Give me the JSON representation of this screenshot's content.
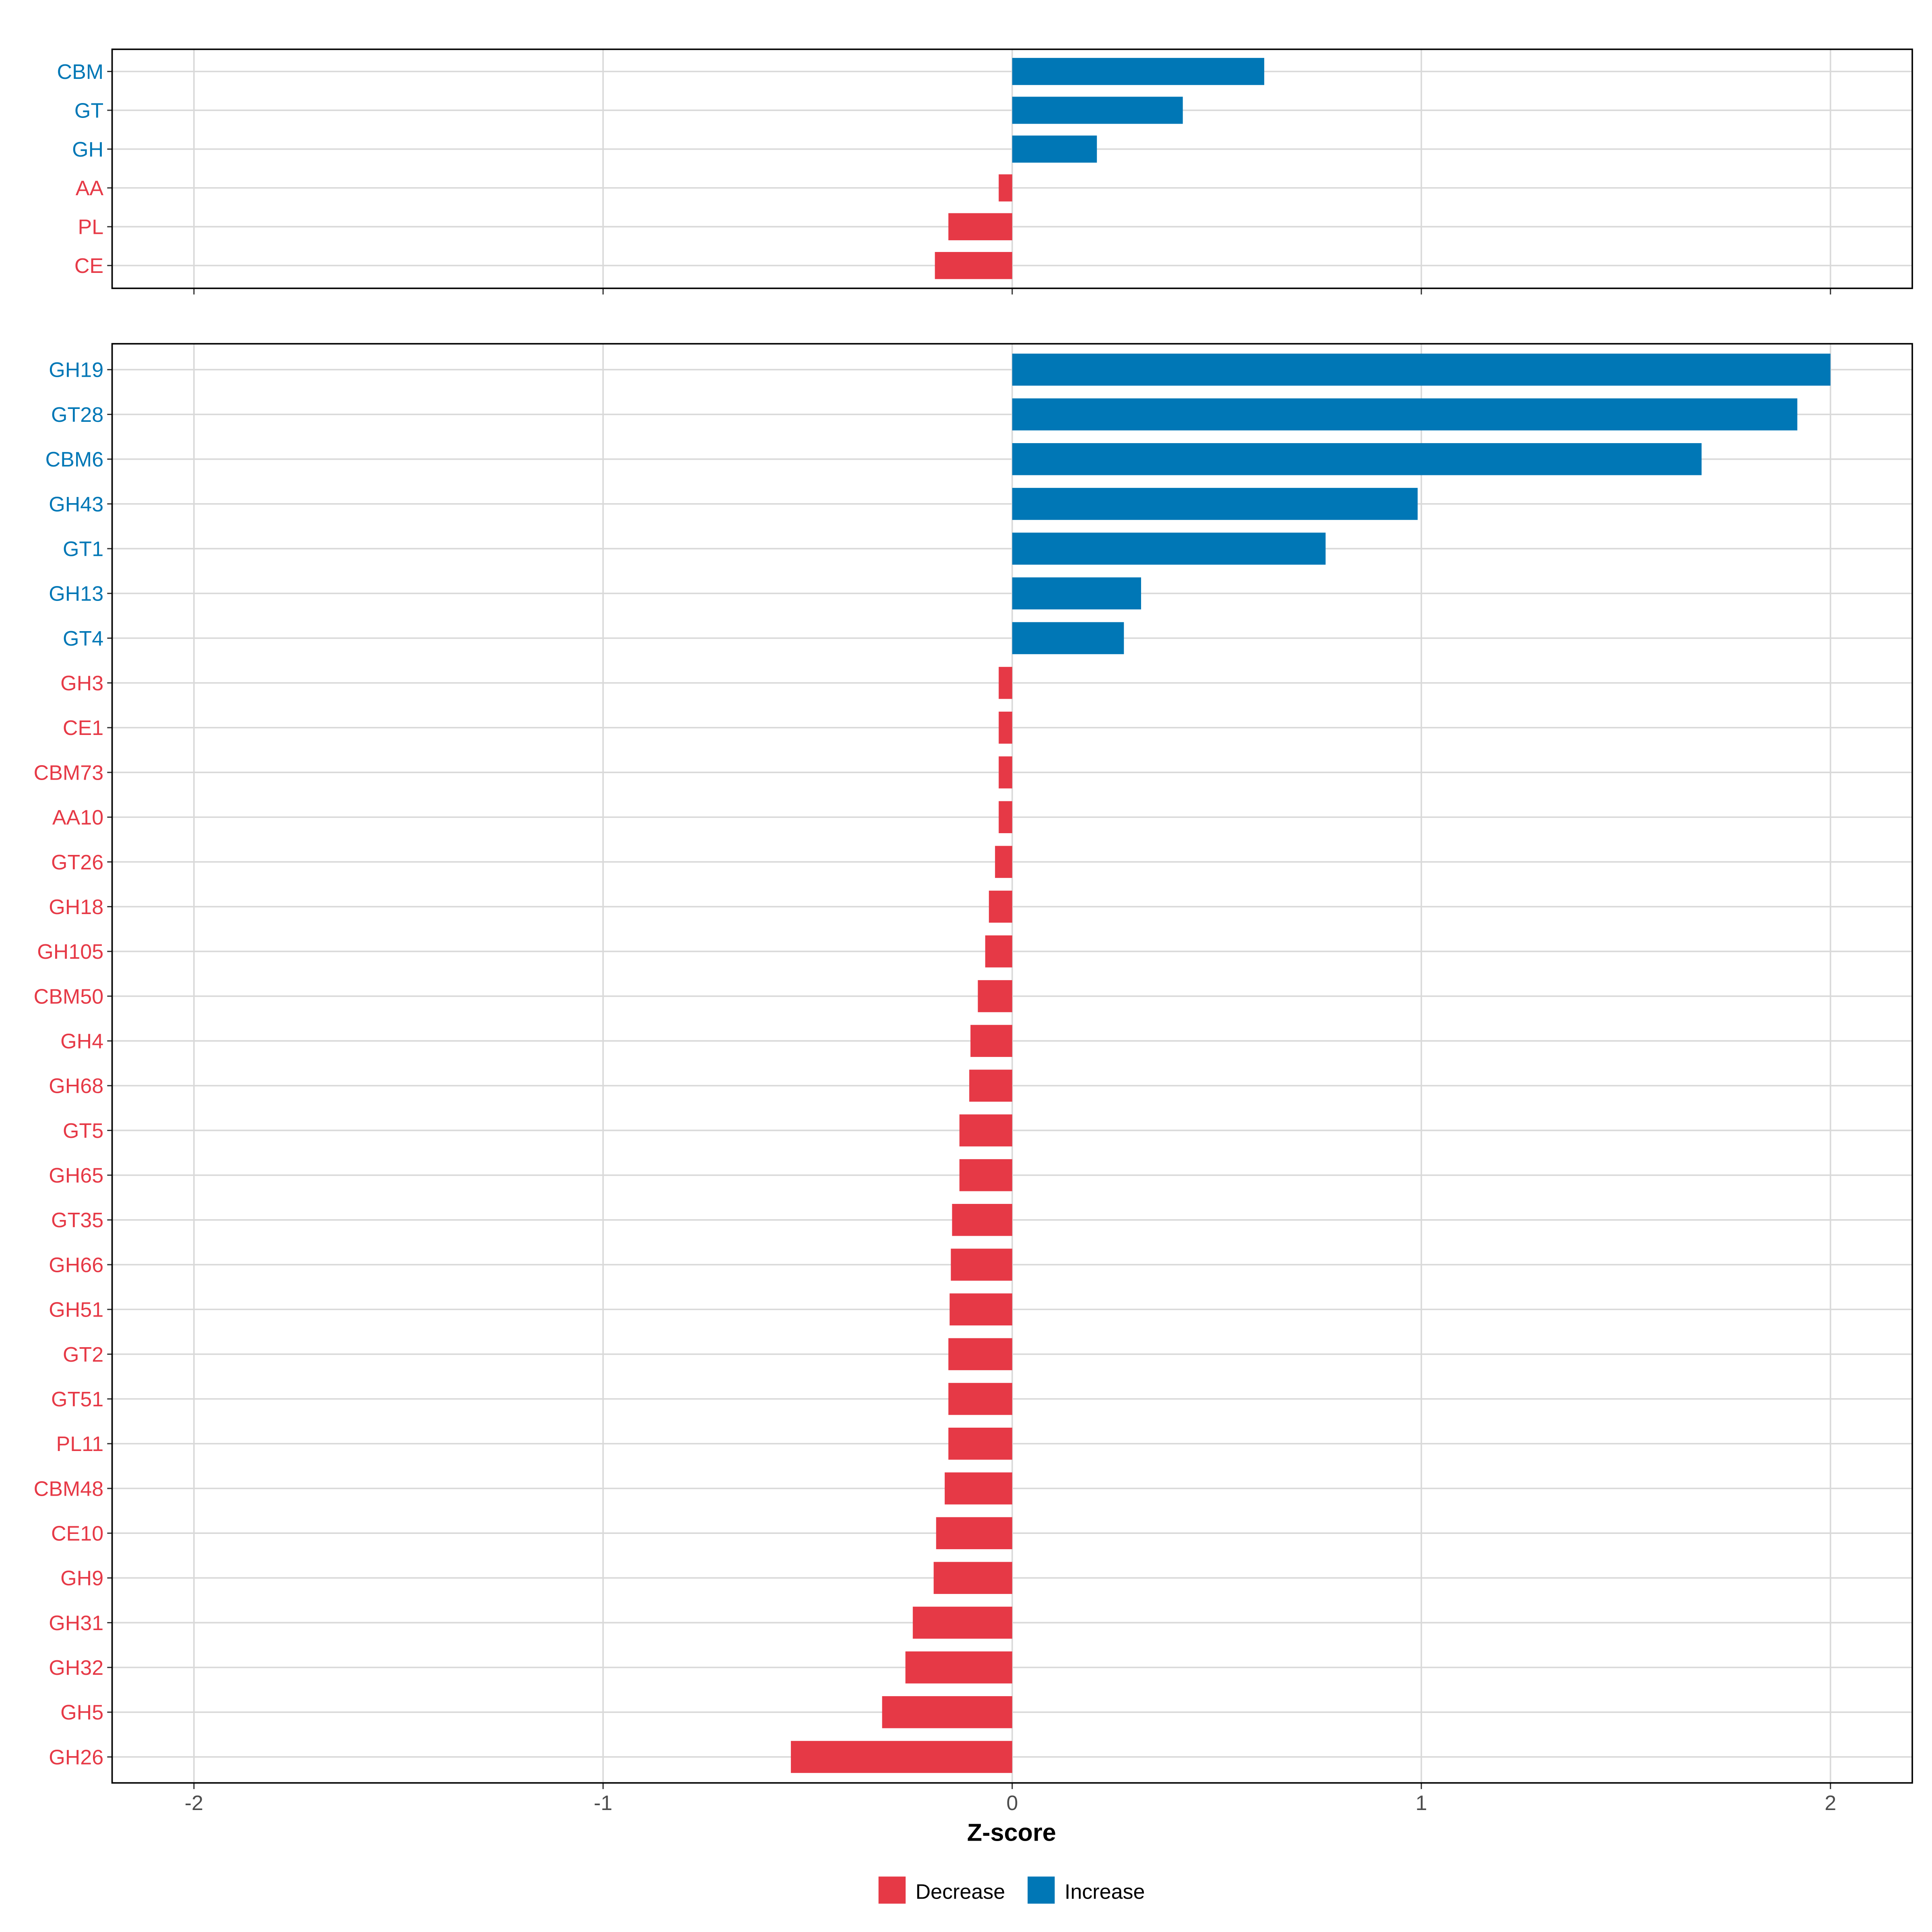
{
  "chart_data": [
    {
      "type": "bar",
      "orientation": "horizontal",
      "panel": "top",
      "categories": [
        "CBM",
        "GT",
        "GH",
        "AA",
        "PL",
        "CE"
      ],
      "values": [
        0.616,
        0.417,
        0.207,
        -0.033,
        -0.156,
        -0.189
      ],
      "xlim": [
        -2.2,
        2.2
      ],
      "grid": true
    },
    {
      "type": "bar",
      "orientation": "horizontal",
      "panel": "bottom",
      "categories": [
        "GH19",
        "GT28",
        "CBM6",
        "GH43",
        "GT1",
        "GH13",
        "GT4",
        "GH3",
        "CE1",
        "CBM73",
        "AA10",
        "GT26",
        "GH18",
        "GH105",
        "CBM50",
        "GH4",
        "GH68",
        "GT5",
        "GH65",
        "GT35",
        "GH66",
        "GH51",
        "GT2",
        "GT51",
        "PL11",
        "CBM48",
        "CE10",
        "GH9",
        "GH31",
        "GH32",
        "GH5",
        "GH26"
      ],
      "values": [
        2.0,
        1.919,
        1.685,
        0.991,
        0.766,
        0.315,
        0.273,
        -0.033,
        -0.033,
        -0.033,
        -0.033,
        -0.042,
        -0.057,
        -0.066,
        -0.084,
        -0.102,
        -0.105,
        -0.129,
        -0.129,
        -0.147,
        -0.15,
        -0.153,
        -0.156,
        -0.156,
        -0.156,
        -0.165,
        -0.186,
        -0.192,
        -0.243,
        -0.261,
        -0.318,
        -0.541
      ],
      "xlim": [
        -2.2,
        2.2
      ],
      "xticks": [
        "-2",
        "-1",
        "0",
        "1",
        "2"
      ],
      "xtick_values": [
        -2,
        -1,
        0,
        1,
        2
      ],
      "xlabel": "Z-score",
      "grid": true
    }
  ],
  "legend": {
    "placement": "bottom",
    "items": [
      {
        "label": "Decrease",
        "color": "#E63946"
      },
      {
        "label": "Increase",
        "color": "#0077B6"
      }
    ]
  }
}
